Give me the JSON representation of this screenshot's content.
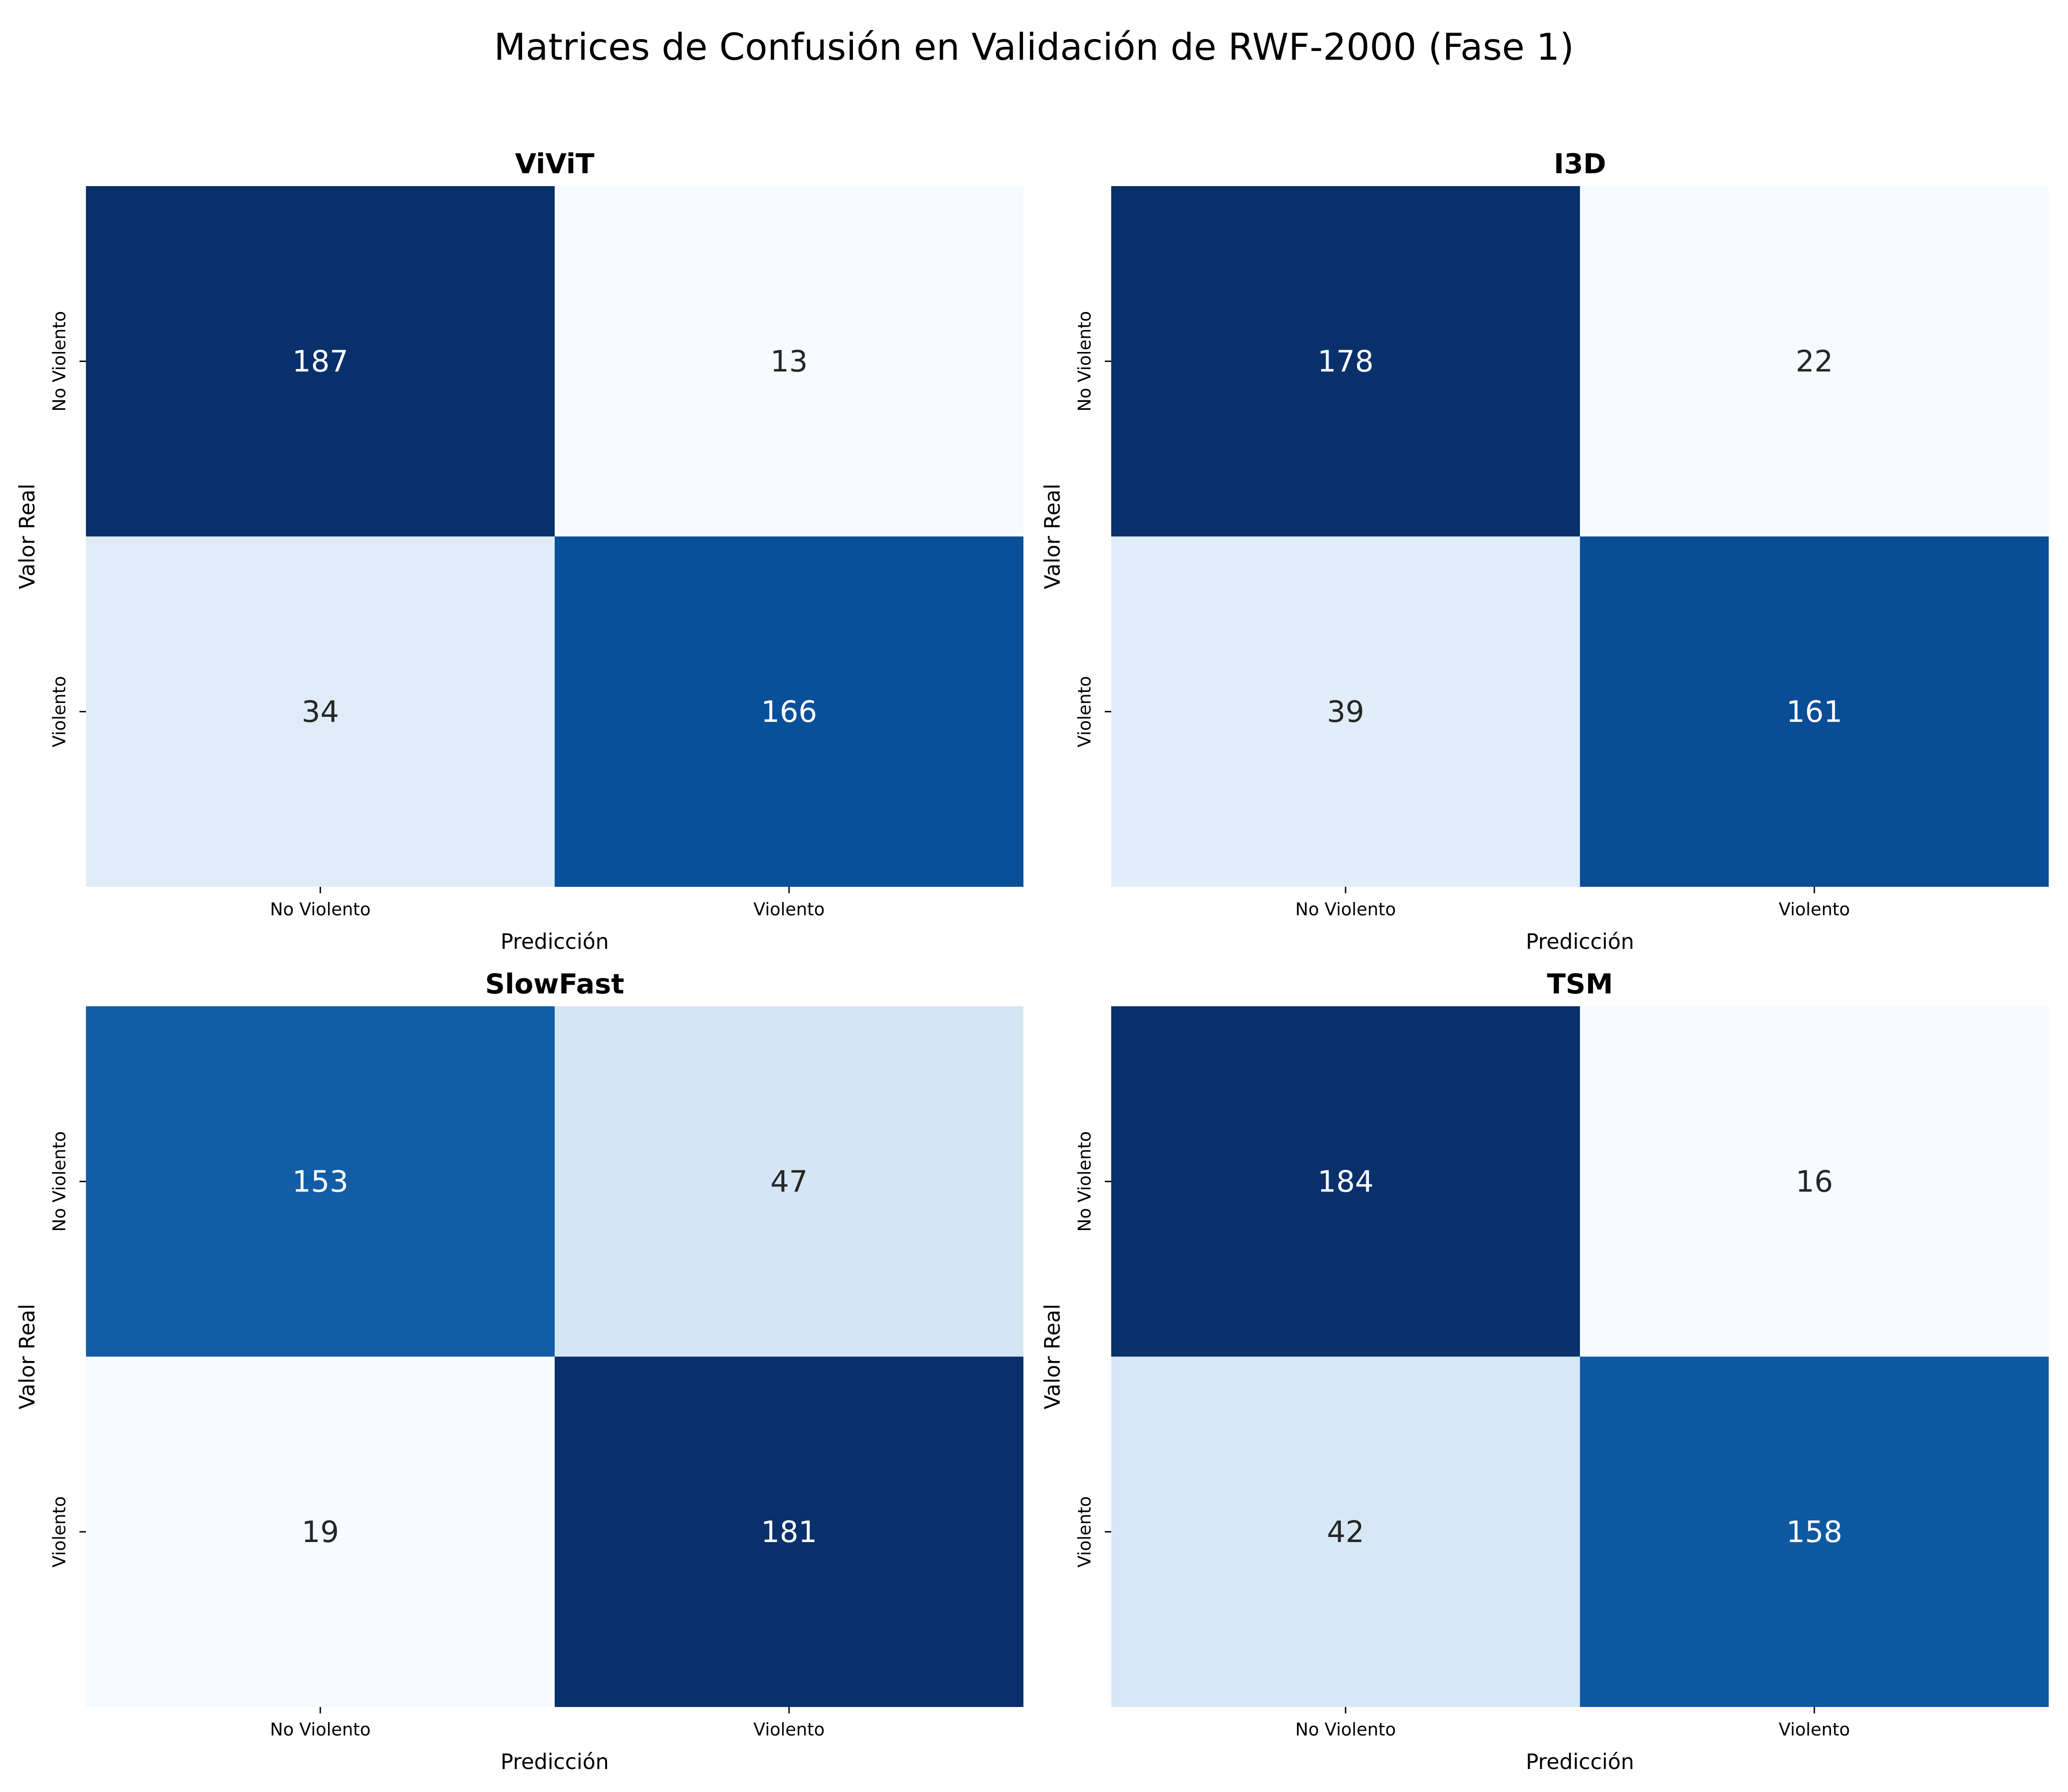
{
  "figure": {
    "title": "Matrices de Confusión en Validación de RWF-2000 (Fase 1)"
  },
  "chart_data": [
    {
      "type": "heatmap",
      "title": "ViViT",
      "xlabel": "Predicción",
      "ylabel": "Valor Real",
      "x_categories": [
        "No Violento",
        "Violento"
      ],
      "y_categories": [
        "No Violento",
        "Violento"
      ],
      "values": [
        [
          187,
          13
        ],
        [
          34,
          166
        ]
      ],
      "colormap": "Blues"
    },
    {
      "type": "heatmap",
      "title": "I3D",
      "xlabel": "Predicción",
      "ylabel": "Valor Real",
      "x_categories": [
        "No Violento",
        "Violento"
      ],
      "y_categories": [
        "No Violento",
        "Violento"
      ],
      "values": [
        [
          178,
          22
        ],
        [
          39,
          161
        ]
      ],
      "colormap": "Blues"
    },
    {
      "type": "heatmap",
      "title": "SlowFast",
      "xlabel": "Predicción",
      "ylabel": "Valor Real",
      "x_categories": [
        "No Violento",
        "Violento"
      ],
      "y_categories": [
        "No Violento",
        "Violento"
      ],
      "values": [
        [
          153,
          47
        ],
        [
          19,
          181
        ]
      ],
      "colormap": "Blues"
    },
    {
      "type": "heatmap",
      "title": "TSM",
      "xlabel": "Predicción",
      "ylabel": "Valor Real",
      "x_categories": [
        "No Violento",
        "Violento"
      ],
      "y_categories": [
        "No Violento",
        "Violento"
      ],
      "values": [
        [
          184,
          16
        ],
        [
          42,
          158
        ]
      ],
      "colormap": "Blues"
    }
  ]
}
